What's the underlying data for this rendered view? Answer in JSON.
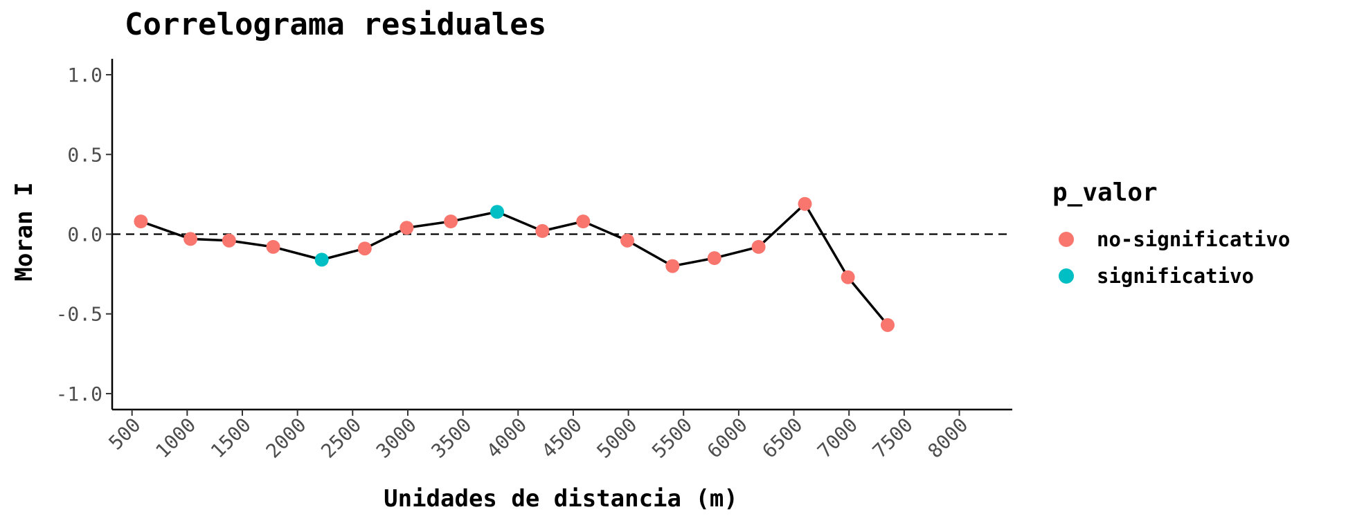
{
  "chart_data": {
    "type": "line",
    "title": "Correlograma residuales",
    "xlabel": "Unidades de distancia (m)",
    "ylabel": "Moran I",
    "xlim": [
      320,
      8480
    ],
    "ylim": [
      -1.1,
      1.1
    ],
    "x_ticks": [
      500,
      1000,
      1500,
      2000,
      2500,
      3000,
      3500,
      4000,
      4500,
      5000,
      5500,
      6000,
      6500,
      7000,
      7500,
      8000
    ],
    "x_tick_labels": [
      "500",
      "1000",
      "1500",
      "2000",
      "2500",
      "3000",
      "3500",
      "4000",
      "4500",
      "5000",
      "5500",
      "6000",
      "6500",
      "7000",
      "7500",
      "8000"
    ],
    "y_ticks": [
      1.0,
      0.5,
      0.0,
      -0.5,
      -1.0
    ],
    "y_tick_labels": [
      "1.0",
      "0.5",
      "0.0",
      "-0.5",
      "-1.0"
    ],
    "reference_line_y": 0,
    "legend": {
      "title": "p_valor",
      "placement": "right",
      "entries": [
        {
          "label": "no-significativo",
          "color": "#F8766D"
        },
        {
          "label": "significativo",
          "color": "#00BFC4"
        }
      ]
    },
    "points": [
      {
        "x": 580,
        "y": 0.08,
        "group": "no-significativo"
      },
      {
        "x": 1030,
        "y": -0.03,
        "group": "no-significativo"
      },
      {
        "x": 1380,
        "y": -0.04,
        "group": "no-significativo"
      },
      {
        "x": 1780,
        "y": -0.08,
        "group": "no-significativo"
      },
      {
        "x": 2220,
        "y": -0.16,
        "group": "significativo"
      },
      {
        "x": 2610,
        "y": -0.09,
        "group": "no-significativo"
      },
      {
        "x": 2990,
        "y": 0.04,
        "group": "no-significativo"
      },
      {
        "x": 3390,
        "y": 0.08,
        "group": "no-significativo"
      },
      {
        "x": 3810,
        "y": 0.14,
        "group": "significativo"
      },
      {
        "x": 4220,
        "y": 0.02,
        "group": "no-significativo"
      },
      {
        "x": 4590,
        "y": 0.08,
        "group": "no-significativo"
      },
      {
        "x": 4990,
        "y": -0.04,
        "group": "no-significativo"
      },
      {
        "x": 5400,
        "y": -0.2,
        "group": "no-significativo"
      },
      {
        "x": 5780,
        "y": -0.15,
        "group": "no-significativo"
      },
      {
        "x": 6180,
        "y": -0.08,
        "group": "no-significativo"
      },
      {
        "x": 6600,
        "y": 0.19,
        "group": "no-significativo"
      },
      {
        "x": 6990,
        "y": -0.27,
        "group": "no-significativo"
      },
      {
        "x": 7350,
        "y": -0.57,
        "group": "no-significativo"
      }
    ],
    "line_color": "#000000",
    "grid": false
  }
}
